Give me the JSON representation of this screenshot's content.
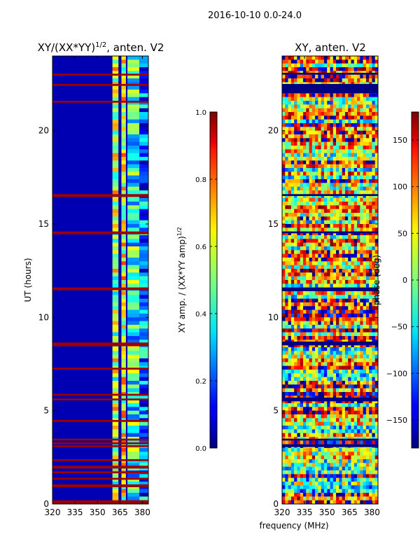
{
  "figure": {
    "suptitle": "2016-10-10 0.0-24.0",
    "shared_xlabel": "frequency (MHz)"
  },
  "chart_data": [
    {
      "type": "heatmap",
      "title_main": "XY/(XX*YY)",
      "title_sup": "1/2",
      "title_tail": ", anten. V2",
      "xlabel": "",
      "ylabel": "UT (hours)",
      "xlim": [
        320,
        384
      ],
      "ylim": [
        0,
        24
      ],
      "xticks": [
        320,
        335,
        350,
        365,
        380
      ],
      "yticks": [
        0,
        5,
        10,
        15,
        20
      ],
      "colorbar": {
        "label_main": "XY amp. / (XX*YY amp)",
        "label_sup": "1/2",
        "range": [
          0.0,
          1.0
        ],
        "ticks": [
          "0.0",
          "0.2",
          "0.4",
          "0.6",
          "0.8",
          "1.0"
        ]
      },
      "background_value": 0.05,
      "saturated_time_bands_hours": [
        [
          0.0,
          0.2
        ],
        [
          0.9,
          1.05
        ],
        [
          1.3,
          1.4
        ],
        [
          1.65,
          1.75
        ],
        [
          1.9,
          2.05
        ],
        [
          2.3,
          2.4
        ],
        [
          3.05,
          3.15
        ],
        [
          3.2,
          3.3
        ],
        [
          3.4,
          3.5
        ],
        [
          4.4,
          4.5
        ],
        [
          5.55,
          5.65
        ],
        [
          5.8,
          5.9
        ],
        [
          7.2,
          7.3
        ],
        [
          8.45,
          8.65
        ],
        [
          11.45,
          11.6
        ],
        [
          14.45,
          14.6
        ],
        [
          16.45,
          16.6
        ],
        [
          21.5,
          21.6
        ],
        [
          22.4,
          22.5
        ],
        [
          22.95,
          23.05
        ]
      ],
      "band_values_by_frequency": [
        {
          "from": 360,
          "to": 364,
          "value": 0.55
        },
        {
          "from": 366,
          "to": 369,
          "value": 0.6
        },
        {
          "from": 370,
          "to": 378,
          "value": 0.4
        },
        {
          "from": 378,
          "to": 384,
          "value": 0.25
        }
      ]
    },
    {
      "type": "heatmap",
      "title_main": "XY, anten. V2",
      "xlabel": "frequency (MHz)",
      "ylabel": "",
      "xlim": [
        320,
        384
      ],
      "ylim": [
        0,
        24
      ],
      "xticks": [
        320,
        335,
        350,
        365,
        380
      ],
      "yticks": [
        0,
        5,
        10,
        15,
        20
      ],
      "colorbar": {
        "label_main": "phase (deg)",
        "range": [
          -180,
          180
        ],
        "ticks": [
          "−150",
          "−100",
          "−50",
          "0",
          "50",
          "100",
          "150"
        ]
      },
      "dark_time_bands_hours": [
        [
          3.05,
          3.2
        ],
        [
          3.4,
          3.5
        ],
        [
          5.5,
          5.7
        ],
        [
          8.5,
          8.7
        ],
        [
          11.4,
          11.6
        ],
        [
          14.5,
          14.6
        ],
        [
          16.5,
          16.6
        ],
        [
          22.0,
          22.5
        ],
        [
          23.0,
          23.1
        ]
      ]
    }
  ]
}
